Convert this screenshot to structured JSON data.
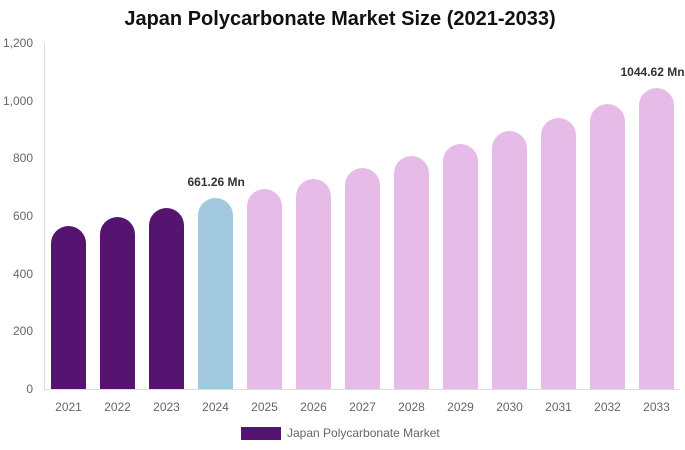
{
  "chart_data": {
    "type": "bar",
    "title": "Japan Polycarbonate Market Size (2021-2033)",
    "xlabel": "",
    "ylabel": "",
    "ylim": [
      0,
      1200
    ],
    "yticks": [
      "0",
      "200",
      "400",
      "600",
      "800",
      "1,000",
      "1,200"
    ],
    "grid": false,
    "legend_position": "bottom",
    "categories": [
      "2021",
      "2022",
      "2023",
      "2024",
      "2025",
      "2026",
      "2027",
      "2028",
      "2029",
      "2030",
      "2031",
      "2032",
      "2033"
    ],
    "series": [
      {
        "name": "Japan Polycarbonate Market",
        "values": [
          565,
          597,
          628,
          661.26,
          694,
          728,
          767,
          808,
          850,
          895,
          940,
          988,
          1044.62
        ]
      }
    ],
    "annotations": [
      {
        "category": "2024",
        "text": "661.26 Mn"
      },
      {
        "category": "2033",
        "text": "1044.62 Mn"
      }
    ],
    "colors": {
      "historical": "#541470",
      "base_year": "#a2c9df",
      "forecast": "#e6bbe8"
    }
  },
  "legend": {
    "label": "Japan Polycarbonate Market",
    "color": "#541470"
  }
}
